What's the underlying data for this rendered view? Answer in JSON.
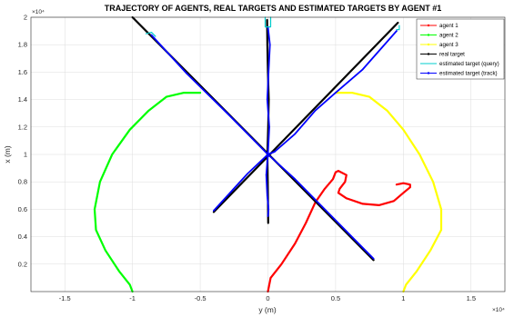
{
  "chart_data": {
    "type": "line",
    "title": "TRAJECTORY OF AGENTS, REAL TARGETS AND ESTIMATED TARGETS BY AGENT #1",
    "xlabel": "y (m)",
    "ylabel": "x (m)",
    "x_exponent_label": "×10⁴",
    "y_exponent_label": "×10⁴",
    "xlim": [
      -1.75,
      1.75
    ],
    "ylim": [
      0,
      2.0
    ],
    "x_ticks": [
      -1.5,
      -1,
      -0.5,
      0,
      0.5,
      1,
      1.5
    ],
    "x_tick_labels": [
      "-1.5",
      "-1",
      "-0.5",
      "0",
      "0.5",
      "1",
      "1.5"
    ],
    "y_ticks": [
      0.2,
      0.4,
      0.6,
      0.8,
      1,
      1.2,
      1.4,
      1.6,
      1.8,
      2
    ],
    "y_tick_labels": [
      "0.2",
      "0.4",
      "0.6",
      "0.8",
      "1",
      "1.2",
      "1.4",
      "1.6",
      "1.8",
      "2"
    ],
    "grid": true,
    "legend_position": "top-right",
    "series": [
      {
        "name": "agent 1",
        "color": "#ff0000",
        "marker": "dot",
        "x": [
          0,
          0.02,
          0.1,
          0.2,
          0.28,
          0.35,
          0.42,
          0.48,
          0.5,
          0.52,
          0.58,
          0.57,
          0.53,
          0.52,
          0.58,
          0.7,
          0.82,
          0.93,
          1.0,
          1.05,
          1.05,
          1.0,
          0.95
        ],
        "y": [
          0,
          0.1,
          0.2,
          0.35,
          0.5,
          0.65,
          0.75,
          0.82,
          0.87,
          0.88,
          0.85,
          0.8,
          0.75,
          0.72,
          0.68,
          0.64,
          0.63,
          0.66,
          0.72,
          0.76,
          0.78,
          0.79,
          0.78
        ]
      },
      {
        "name": "agent 2",
        "color": "#00ff00",
        "marker": "dot",
        "x": [
          -1.0,
          -1.02,
          -1.1,
          -1.2,
          -1.27,
          -1.28,
          -1.24,
          -1.15,
          -1.02,
          -0.88,
          -0.75,
          -0.62,
          -0.5
        ],
        "y": [
          0,
          0.05,
          0.15,
          0.3,
          0.45,
          0.6,
          0.8,
          1.0,
          1.18,
          1.32,
          1.42,
          1.45,
          1.45
        ]
      },
      {
        "name": "agent 3",
        "color": "#ffff00",
        "marker": "dot",
        "x": [
          1.0,
          1.02,
          1.1,
          1.2,
          1.28,
          1.28,
          1.22,
          1.12,
          1.0,
          0.88,
          0.75,
          0.62,
          0.5
        ],
        "y": [
          0,
          0.05,
          0.15,
          0.3,
          0.45,
          0.6,
          0.8,
          1.0,
          1.18,
          1.32,
          1.42,
          1.45,
          1.45
        ]
      }
    ],
    "real_target": {
      "name": "real target",
      "color": "#000000",
      "paths": [
        {
          "x": [
            -1.0,
            0.78
          ],
          "y": [
            2.0,
            0.23
          ]
        },
        {
          "x": [
            0.96,
            -0.4
          ],
          "y": [
            1.96,
            0.58
          ]
        },
        {
          "x": [
            -0.006,
            -0.004,
            0.0,
            0.006,
            0.002,
            -0.004,
            0.0,
            0.002
          ],
          "y": [
            1.98,
            1.8,
            1.6,
            1.4,
            1.2,
            1.0,
            0.7,
            0.5
          ]
        }
      ]
    },
    "estimated_query": {
      "name": "estimated target (query)",
      "color": "#00cccc",
      "paths": [
        {
          "x": [
            -0.02,
            -0.02,
            0.02,
            0.02
          ],
          "y": [
            2.0,
            1.93,
            1.93,
            2.0
          ]
        },
        {
          "x": [
            0.95,
            0.97,
            0.97
          ],
          "y": [
            1.91,
            1.91,
            1.94
          ]
        },
        {
          "x": [
            -0.9,
            -0.86,
            -0.83
          ],
          "y": [
            1.88,
            1.89,
            1.86
          ]
        }
      ]
    },
    "estimated_track": {
      "name": "estimated target (track)",
      "color": "#0000ff",
      "paths": [
        {
          "x": [
            -0.86,
            -0.6,
            -0.3,
            -0.1,
            0.0,
            0.2,
            0.4,
            0.6,
            0.78
          ],
          "y": [
            1.87,
            1.59,
            1.3,
            1.1,
            1.0,
            0.82,
            0.62,
            0.42,
            0.24
          ]
        },
        {
          "x": [
            0.95,
            0.7,
            0.5,
            0.35,
            0.2,
            0.05,
            0.0,
            -0.15,
            -0.28,
            -0.4
          ],
          "y": [
            1.9,
            1.62,
            1.45,
            1.32,
            1.15,
            1.02,
            1.0,
            0.86,
            0.72,
            0.59
          ]
        },
        {
          "x": [
            0.0,
            0.015,
            0.005,
            -0.005,
            0.01,
            0.0,
            -0.012,
            -0.005,
            0.005,
            0.0
          ],
          "y": [
            1.93,
            1.8,
            1.6,
            1.4,
            1.2,
            1.0,
            0.85,
            0.7,
            0.6,
            0.55
          ]
        }
      ]
    }
  }
}
